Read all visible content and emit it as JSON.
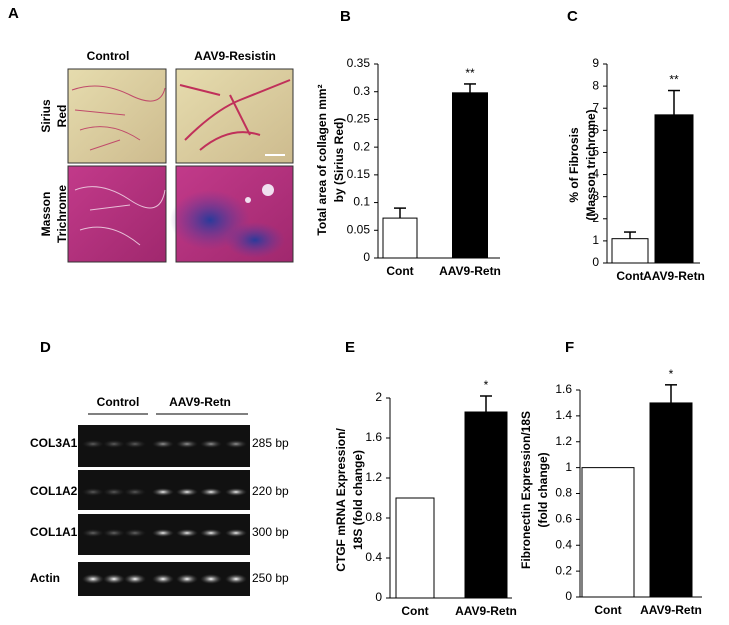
{
  "panels": {
    "A": {
      "letter": "A",
      "columns": [
        "Control",
        "AAV9-Resistin"
      ],
      "rows": [
        [
          "Sirius",
          "Red"
        ],
        [
          "Masson",
          "Trichrome"
        ]
      ]
    },
    "D": {
      "letter": "D",
      "groups": [
        "Control",
        "AAV9-Retn"
      ],
      "genes": [
        "COL3A1",
        "COL1A2",
        "COL1A1",
        "Actin"
      ],
      "sizes": [
        "285 bp",
        "220 bp",
        "300 bp",
        "250 bp"
      ]
    }
  },
  "chart_data": [
    {
      "type": "bar",
      "panel": "B",
      "ylabel": [
        "Total area of collagen mm²",
        "by (Sirius Red)"
      ],
      "categories": [
        "Cont",
        "AAV9-Retn"
      ],
      "values": [
        0.072,
        0.298
      ],
      "errors": [
        0.018,
        0.016
      ],
      "annotations": [
        null,
        "**"
      ],
      "colors": [
        "#ffffff",
        "#000000"
      ],
      "ylim": [
        0,
        0.35
      ],
      "yticks": [
        0,
        0.05,
        0.1,
        0.15,
        0.2,
        0.25,
        0.3,
        0.35
      ]
    },
    {
      "type": "bar",
      "panel": "C",
      "ylabel": [
        "% of Fibrosis",
        "(Masson trichrome)"
      ],
      "categories": [
        "Cont",
        "AAV9-Retn"
      ],
      "values": [
        1.1,
        6.7
      ],
      "errors": [
        0.3,
        1.1
      ],
      "annotations": [
        null,
        "**"
      ],
      "colors": [
        "#ffffff",
        "#000000"
      ],
      "ylim": [
        0,
        9
      ],
      "yticks": [
        0,
        1,
        2,
        3,
        4,
        5,
        6,
        7,
        8,
        9
      ]
    },
    {
      "type": "bar",
      "panel": "E",
      "ylabel": [
        "CTGF mRNA Expression/",
        "18S (fold change)"
      ],
      "categories": [
        "Cont",
        "AAV9-Retn"
      ],
      "values": [
        1.0,
        1.86
      ],
      "errors": [
        0,
        0.16
      ],
      "annotations": [
        null,
        "*"
      ],
      "colors": [
        "#ffffff",
        "#000000"
      ],
      "ylim": [
        0,
        2
      ],
      "yticks": [
        0,
        0.4,
        0.8,
        1.2,
        1.6,
        2
      ]
    },
    {
      "type": "bar",
      "panel": "F",
      "ylabel": [
        "Fibronectin Expression/18S",
        "(fold change)"
      ],
      "categories": [
        "Cont",
        "AAV9-Retn"
      ],
      "values": [
        1.0,
        1.5
      ],
      "errors": [
        0,
        0.14
      ],
      "annotations": [
        null,
        "*"
      ],
      "colors": [
        "#ffffff",
        "#000000"
      ],
      "ylim": [
        0,
        1.6
      ],
      "yticks": [
        0,
        0.2,
        0.4,
        0.6,
        0.8,
        1,
        1.2,
        1.4,
        1.6
      ]
    }
  ]
}
